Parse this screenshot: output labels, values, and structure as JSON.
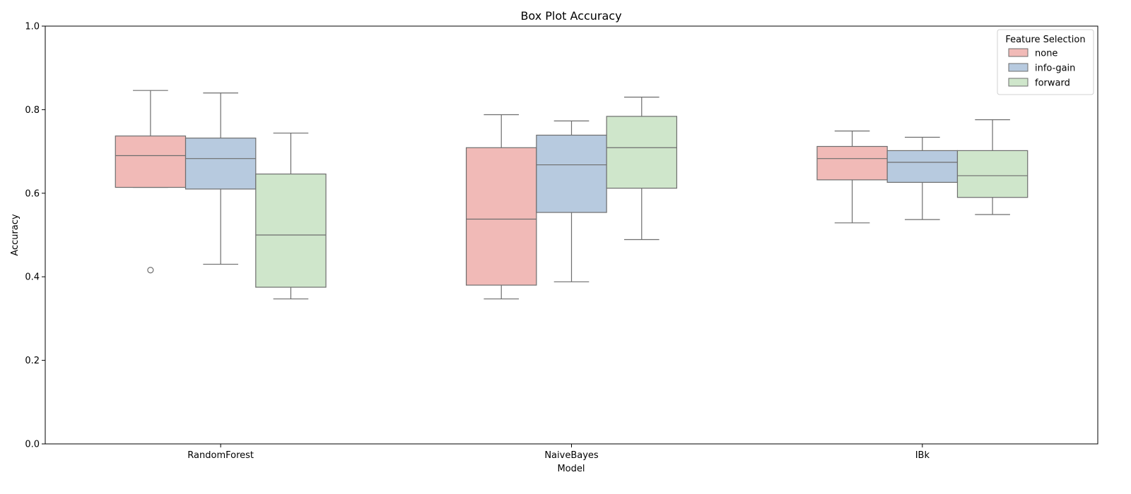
{
  "chart_data": {
    "type": "box",
    "title": "Box Plot Accuracy",
    "xlabel": "Model",
    "ylabel": "Accuracy",
    "ylim": [
      0,
      1.0
    ],
    "yticks": [
      "0.0",
      "0.2",
      "0.4",
      "0.6",
      "0.8",
      "1.0"
    ],
    "categories": [
      "RandomForest",
      "NaiveBayes",
      "IBk"
    ],
    "legend": {
      "title": "Feature Selection",
      "placement": "top-right"
    },
    "grid": false,
    "series": [
      {
        "name": "none",
        "color": "#f1bab7",
        "boxes": [
          {
            "whisker_low": 0.614,
            "q1": 0.614,
            "median": 0.69,
            "q3": 0.737,
            "whisker_high": 0.846,
            "outliers": [
              0.416
            ]
          },
          {
            "whisker_low": 0.347,
            "q1": 0.38,
            "median": 0.538,
            "q3": 0.709,
            "whisker_high": 0.788,
            "outliers": []
          },
          {
            "whisker_low": 0.529,
            "q1": 0.632,
            "median": 0.683,
            "q3": 0.712,
            "whisker_high": 0.749,
            "outliers": []
          }
        ]
      },
      {
        "name": "info-gain",
        "color": "#b7cadf",
        "boxes": [
          {
            "whisker_low": 0.43,
            "q1": 0.61,
            "median": 0.683,
            "q3": 0.732,
            "whisker_high": 0.84,
            "outliers": []
          },
          {
            "whisker_low": 0.388,
            "q1": 0.554,
            "median": 0.668,
            "q3": 0.739,
            "whisker_high": 0.773,
            "outliers": []
          },
          {
            "whisker_low": 0.537,
            "q1": 0.626,
            "median": 0.674,
            "q3": 0.702,
            "whisker_high": 0.734,
            "outliers": []
          }
        ]
      },
      {
        "name": "forward",
        "color": "#cfe6cb",
        "boxes": [
          {
            "whisker_low": 0.347,
            "q1": 0.375,
            "median": 0.5,
            "q3": 0.646,
            "whisker_high": 0.744,
            "outliers": []
          },
          {
            "whisker_low": 0.489,
            "q1": 0.612,
            "median": 0.709,
            "q3": 0.784,
            "whisker_high": 0.83,
            "outliers": []
          },
          {
            "whisker_low": 0.549,
            "q1": 0.59,
            "median": 0.642,
            "q3": 0.702,
            "whisker_high": 0.776,
            "outliers": []
          }
        ]
      }
    ]
  }
}
